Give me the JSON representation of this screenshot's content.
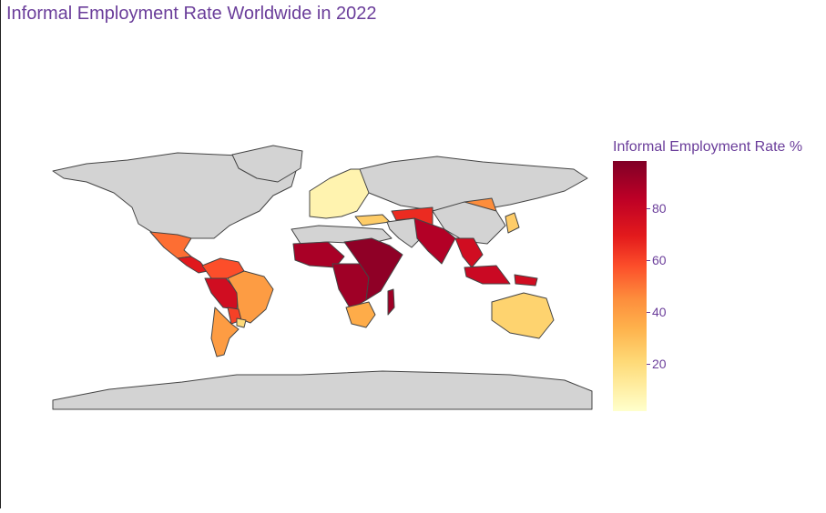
{
  "title": "Informal Employment Rate Worldwide in 2022",
  "colorbar": {
    "title": "Informal Employment Rate %",
    "ticks": [
      "80",
      "60",
      "40",
      "20"
    ],
    "tick_values": [
      80,
      60,
      40,
      20
    ],
    "range": [
      2,
      98
    ],
    "colorscale": [
      "#ffffcc",
      "#ffeda0",
      "#fed976",
      "#feb24c",
      "#fd8d3c",
      "#fc4e2a",
      "#e31a1c",
      "#bd0026",
      "#800026"
    ]
  },
  "colors": {
    "no_data": "#d3d3d3",
    "border": "#444444",
    "ocean": "#ffffff",
    "text": "#6a3d9a"
  },
  "regions": [
    {
      "name": "North America",
      "level": null
    },
    {
      "name": "Greenland",
      "level": null
    },
    {
      "name": "Mexico",
      "level": 56
    },
    {
      "name": "Central America",
      "level": 75
    },
    {
      "name": "Colombia-Venezuela",
      "level": 62
    },
    {
      "name": "Peru-Bolivia",
      "level": 80
    },
    {
      "name": "Brazil",
      "level": 45
    },
    {
      "name": "Paraguay",
      "level": 65
    },
    {
      "name": "Uruguay",
      "level": 25
    },
    {
      "name": "Argentina-Chile",
      "level": 45
    },
    {
      "name": "Europe",
      "level": 10
    },
    {
      "name": "Russia",
      "level": null
    },
    {
      "name": "Turkey",
      "level": 30
    },
    {
      "name": "North Africa",
      "level": null
    },
    {
      "name": "West Africa",
      "level": 90
    },
    {
      "name": "Central Africa",
      "level": 92
    },
    {
      "name": "East Africa",
      "level": 95
    },
    {
      "name": "Southern Africa",
      "level": 40
    },
    {
      "name": "Madagascar",
      "level": 92
    },
    {
      "name": "Middle East",
      "level": null
    },
    {
      "name": "Central Asia",
      "level": 70
    },
    {
      "name": "Mongolia",
      "level": 50
    },
    {
      "name": "China",
      "level": null
    },
    {
      "name": "South Asia",
      "level": 88
    },
    {
      "name": "Southeast Asia",
      "level": 80
    },
    {
      "name": "Indonesia",
      "level": 82
    },
    {
      "name": "Papua New Guinea",
      "level": 80
    },
    {
      "name": "Australia",
      "level": 28
    },
    {
      "name": "Japan-Korea",
      "level": 30
    },
    {
      "name": "Antarctica",
      "level": null
    }
  ]
}
